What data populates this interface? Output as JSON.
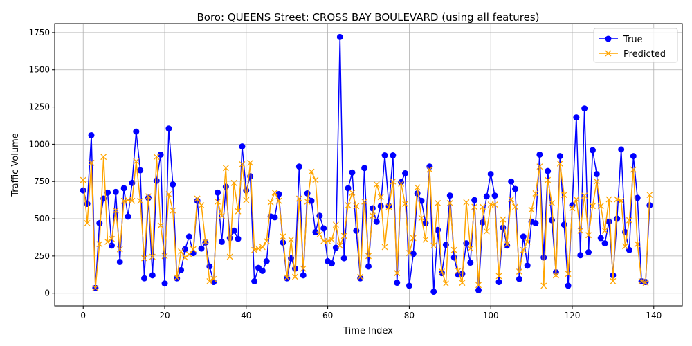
{
  "chart_data": {
    "type": "line",
    "title": "Boro: QUEENS Street: CROSS BAY BOULEVARD (using all features)",
    "xlabel": "Time Index",
    "ylabel": "Traffic Volume",
    "xlim": [
      -7,
      147
    ],
    "ylim": [
      -85,
      1810
    ],
    "x_ticks": [
      0,
      20,
      40,
      60,
      80,
      100,
      120,
      140
    ],
    "y_ticks": [
      0,
      250,
      500,
      750,
      1000,
      1250,
      1500,
      1750
    ],
    "grid": true,
    "legend_position": "top-right",
    "series": [
      {
        "name": "True",
        "color": "#0000ff",
        "marker": "circle",
        "values": [
          690,
          600,
          1060,
          35,
          470,
          635,
          675,
          320,
          680,
          210,
          705,
          515,
          740,
          1085,
          825,
          100,
          640,
          120,
          755,
          930,
          65,
          1105,
          730,
          100,
          155,
          295,
          380,
          270,
          620,
          300,
          340,
          180,
          75,
          675,
          345,
          715,
          370,
          420,
          365,
          985,
          690,
          785,
          80,
          170,
          150,
          215,
          515,
          510,
          665,
          340,
          100,
          235,
          165,
          850,
          120,
          670,
          620,
          410,
          520,
          435,
          215,
          200,
          305,
          1720,
          235,
          705,
          810,
          420,
          100,
          840,
          180,
          570,
          480,
          585,
          925,
          585,
          925,
          70,
          745,
          805,
          50,
          265,
          670,
          620,
          470,
          850,
          10,
          425,
          135,
          325,
          655,
          240,
          125,
          130,
          335,
          205,
          625,
          20,
          475,
          650,
          800,
          655,
          75,
          440,
          320,
          750,
          700,
          95,
          380,
          185,
          480,
          470,
          930,
          240,
          820,
          490,
          140,
          920,
          460,
          50,
          590,
          1180,
          255,
          1240,
          275,
          960,
          800,
          370,
          335,
          480,
          120,
          500,
          965,
          410,
          290,
          920,
          640,
          80,
          75,
          590
        ]
      },
      {
        "name": "Predicted",
        "color": "#ffa500",
        "marker": "x",
        "values": [
          760,
          470,
          875,
          35,
          330,
          915,
          345,
          365,
          555,
          295,
          620,
          625,
          620,
          885,
          620,
          235,
          650,
          245,
          915,
          455,
          250,
          665,
          555,
          105,
          280,
          240,
          260,
          295,
          635,
          590,
          345,
          80,
          95,
          615,
          520,
          840,
          245,
          740,
          550,
          865,
          625,
          875,
          290,
          300,
          310,
          350,
          610,
          675,
          620,
          380,
          105,
          360,
          110,
          635,
          165,
          615,
          815,
          760,
          395,
          350,
          350,
          360,
          460,
          320,
          385,
          590,
          675,
          585,
          110,
          615,
          250,
          520,
          730,
          645,
          310,
          580,
          750,
          135,
          735,
          600,
          270,
          370,
          710,
          505,
          360,
          830,
          320,
          605,
          145,
          65,
          605,
          290,
          150,
          70,
          610,
          300,
          580,
          55,
          580,
          415,
          595,
          595,
          115,
          495,
          330,
          630,
          580,
          145,
          290,
          345,
          560,
          670,
          850,
          50,
          760,
          605,
          120,
          870,
          660,
          130,
          570,
          630,
          420,
          655,
          390,
          585,
          750,
          585,
          420,
          630,
          80,
          630,
          620,
          315,
          490,
          830,
          330,
          80,
          70,
          660
        ]
      }
    ]
  }
}
